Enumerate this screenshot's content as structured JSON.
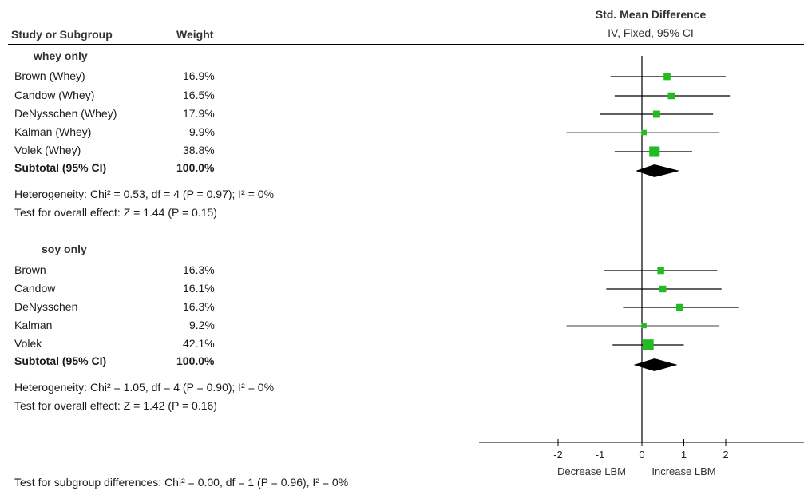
{
  "header": {
    "study_col": "Study or Subgroup",
    "weight_col": "Weight",
    "effect_title": "Std. Mean Difference",
    "effect_method": "IV, Fixed, 95% CI"
  },
  "groups": [
    {
      "name": "whey only",
      "studies": [
        {
          "label": "Brown (Whey)",
          "weight": "16.9%"
        },
        {
          "label": "Candow (Whey)",
          "weight": "16.5%"
        },
        {
          "label": "DeNysschen (Whey)",
          "weight": "17.9%"
        },
        {
          "label": "Kalman (Whey)",
          "weight": "9.9%"
        },
        {
          "label": "Volek (Whey)",
          "weight": "38.8%"
        }
      ],
      "subtotal_label": "Subtotal (95% CI)",
      "subtotal_weight": "100.0%",
      "heterogeneity": "Heterogeneity: Chi² = 0.53, df = 4 (P = 0.97); I² = 0%",
      "overall": "Test for overall effect: Z = 1.44 (P = 0.15)"
    },
    {
      "name": "soy only",
      "studies": [
        {
          "label": "Brown",
          "weight": "16.3%"
        },
        {
          "label": "Candow",
          "weight": "16.1%"
        },
        {
          "label": "DeNysschen",
          "weight": "16.3%"
        },
        {
          "label": "Kalman",
          "weight": "9.2%"
        },
        {
          "label": "Volek",
          "weight": "42.1%"
        }
      ],
      "subtotal_label": "Subtotal (95% CI)",
      "subtotal_weight": "100.0%",
      "heterogeneity": "Heterogeneity: Chi² = 1.05, df = 4 (P = 0.90); I² = 0%",
      "overall": "Test for overall effect: Z = 1.42 (P = 0.16)"
    }
  ],
  "footer": {
    "subgroup_test": "Test for subgroup differences: Chi² = 0.00, df = 1 (P = 0.96), I² = 0%"
  },
  "chart_data": {
    "type": "forest",
    "xlim": [
      -2,
      2
    ],
    "ticks": [
      -2,
      -1,
      0,
      1,
      2
    ],
    "tick_labels": [
      "-2",
      "-1",
      "0",
      "1",
      "2"
    ],
    "favours_left": "Decrease LBM",
    "favours_right": "Increase LBM",
    "colors": {
      "point": "#22bb22",
      "diamond": "#000000",
      "line": "#000000"
    },
    "series": [
      {
        "name": "whey only",
        "estimates": [
          {
            "study": "Brown (Whey)",
            "smd": 0.6,
            "lo": -0.75,
            "hi": 2.0,
            "weight": 16.9
          },
          {
            "study": "Candow (Whey)",
            "smd": 0.7,
            "lo": -0.65,
            "hi": 2.1,
            "weight": 16.5
          },
          {
            "study": "DeNysschen (Whey)",
            "smd": 0.35,
            "lo": -1.0,
            "hi": 1.7,
            "weight": 17.9
          },
          {
            "study": "Kalman (Whey)",
            "smd": 0.05,
            "lo": -1.8,
            "hi": 1.85,
            "weight": 9.9
          },
          {
            "study": "Volek (Whey)",
            "smd": 0.3,
            "lo": -0.65,
            "hi": 1.2,
            "weight": 38.8
          }
        ],
        "subtotal": {
          "smd": 0.3,
          "lo": -0.15,
          "hi": 0.9
        }
      },
      {
        "name": "soy only",
        "estimates": [
          {
            "study": "Brown",
            "smd": 0.45,
            "lo": -0.9,
            "hi": 1.8,
            "weight": 16.3
          },
          {
            "study": "Candow",
            "smd": 0.5,
            "lo": -0.85,
            "hi": 1.9,
            "weight": 16.1
          },
          {
            "study": "DeNysschen",
            "smd": 0.9,
            "lo": -0.45,
            "hi": 2.3,
            "weight": 16.3
          },
          {
            "study": "Kalman",
            "smd": 0.05,
            "lo": -1.8,
            "hi": 1.85,
            "weight": 9.2
          },
          {
            "study": "Volek",
            "smd": 0.15,
            "lo": -0.7,
            "hi": 1.0,
            "weight": 42.1
          }
        ],
        "subtotal": {
          "smd": 0.3,
          "lo": -0.2,
          "hi": 0.85
        }
      }
    ]
  }
}
